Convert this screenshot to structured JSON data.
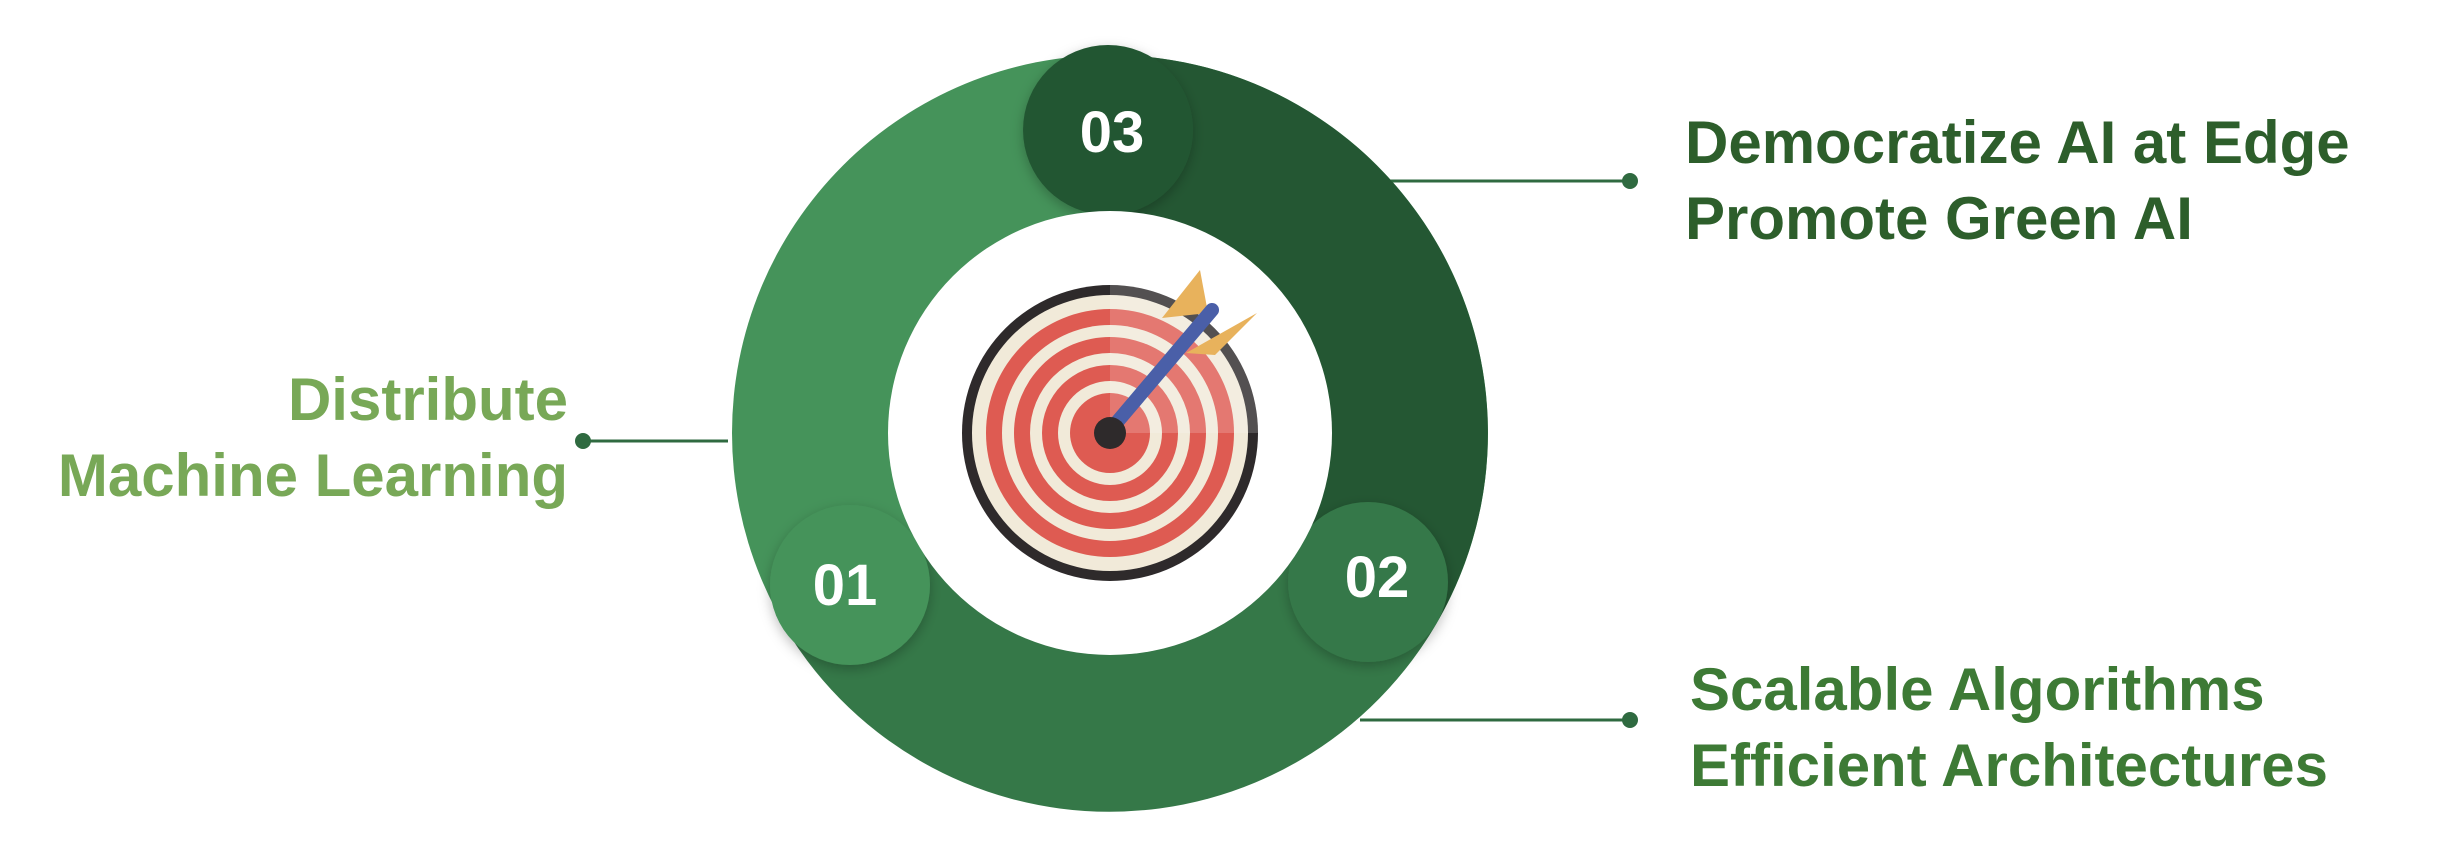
{
  "segments": [
    {
      "number": "01",
      "lines": [
        "Distribute",
        "Machine Learning"
      ],
      "color": "#45935a",
      "text_color": "#78a857"
    },
    {
      "number": "02",
      "lines": [
        "Scalable Algorithms",
        "Efficient Architectures"
      ],
      "color": "#357848",
      "text_color": "#3d7a35"
    },
    {
      "number": "03",
      "lines": [
        "Democratize AI at Edge",
        "Promote Green AI"
      ],
      "color": "#245733",
      "text_color": "#2d5e2b"
    }
  ],
  "center_icon": "target-with-arrow-icon",
  "colors": {
    "target_red": "#de5b52",
    "target_cream": "#f1ead9",
    "target_rim": "#2e2a2b",
    "arrow_shaft": "#4a5fa8",
    "arrow_fletch": "#e8b25c",
    "connector": "#2f6a40"
  }
}
